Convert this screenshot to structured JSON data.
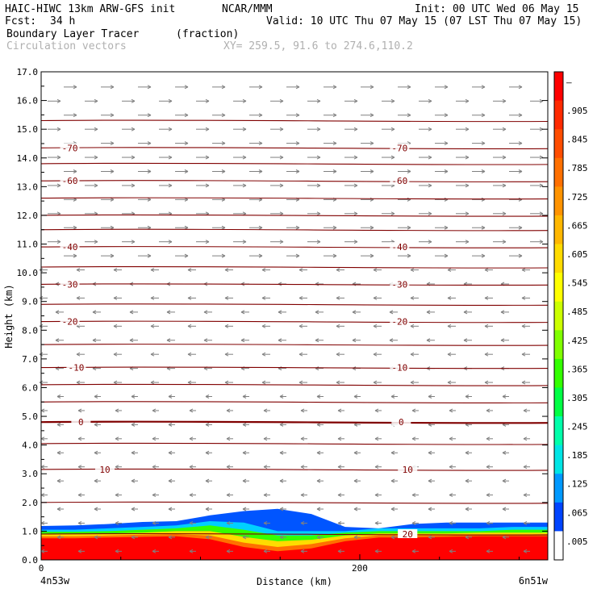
{
  "header": {
    "model": "HAIC-HIWC 13km ARW-GFS init",
    "org": "NCAR/MMM",
    "init": "Init: 00 UTC Wed 06 May 15",
    "fcst_label": "Fcst:",
    "fcst_value": "34 h",
    "valid": "Valid: 10 UTC Thu 07 May 15 (07 LST Thu 07 May 15)",
    "field": "Boundary Layer Tracer",
    "units": "(fraction)",
    "vectors": "Circulation vectors",
    "xy": "XY= 259.5, 91.6 to 274.6,110.2"
  },
  "chart_data": {
    "type": "heatmap",
    "ylabel": "Height (km)",
    "xlabel": "Distance (km)",
    "xlim": [
      0,
      318
    ],
    "ylim": [
      0,
      17
    ],
    "yticks": [
      "0.0",
      "1.0",
      "2.0",
      "3.0",
      "4.0",
      "5.0",
      "6.0",
      "7.0",
      "8.0",
      "9.0",
      "10.0",
      "11.0",
      "12.0",
      "13.0",
      "14.0",
      "15.0",
      "16.0",
      "17.0"
    ],
    "xticks": [
      {
        "v": 0,
        "label": "0"
      },
      {
        "v": 200,
        "label": "200"
      }
    ],
    "x_endpoints": [
      "4n53w",
      "6n51w"
    ],
    "colorbar": {
      "labels": [
        "–",
        ".905",
        ".845",
        ".785",
        ".725",
        ".665",
        ".605",
        ".545",
        ".485",
        ".425",
        ".365",
        ".305",
        ".245",
        ".185",
        ".125",
        ".065",
        ".005"
      ],
      "colors": [
        "#ff0000",
        "#ff2a00",
        "#ff4d00",
        "#ff7000",
        "#ff9300",
        "#ffb700",
        "#ffdb00",
        "#ffff00",
        "#ccff00",
        "#80ff00",
        "#33ff00",
        "#00ff44",
        "#00ffaa",
        "#00e5e5",
        "#0099ff",
        "#0044ff",
        "#ffffff"
      ]
    },
    "tracer_bands": [
      {
        "level": 1.0,
        "top": [
          1.18,
          1.2,
          1.25,
          1.32,
          1.35,
          1.55,
          1.7,
          1.78,
          1.6,
          1.15,
          1.1,
          1.25,
          1.3,
          1.3,
          1.3,
          1.3
        ],
        "color": "#0055ff"
      },
      {
        "level": 0.5,
        "top": [
          1.05,
          1.05,
          1.1,
          1.15,
          1.2,
          1.35,
          1.3,
          1.0,
          1.0,
          1.0,
          1.1,
          1.1,
          1.1,
          1.1,
          1.15,
          1.15
        ],
        "color": "#00d0ff"
      },
      {
        "level": 0.3,
        "top": [
          0.98,
          0.98,
          1.0,
          1.05,
          1.1,
          1.2,
          1.05,
          0.85,
          0.85,
          0.95,
          1.0,
          1.0,
          1.0,
          1.0,
          1.05,
          1.05
        ],
        "color": "#33ff00"
      },
      {
        "level": 0.15,
        "top": [
          0.9,
          0.9,
          0.92,
          0.95,
          1.0,
          1.0,
          0.8,
          0.65,
          0.7,
          0.85,
          0.92,
          0.92,
          0.92,
          0.95,
          0.95,
          0.95
        ],
        "color": "#ffdb00"
      },
      {
        "level": 0.05,
        "top": [
          0.82,
          0.82,
          0.85,
          0.88,
          0.9,
          0.85,
          0.6,
          0.45,
          0.55,
          0.75,
          0.85,
          0.85,
          0.85,
          0.88,
          0.88,
          0.88
        ],
        "color": "#ff7000"
      },
      {
        "level": 0.0,
        "top": [
          0.75,
          0.75,
          0.78,
          0.8,
          0.82,
          0.72,
          0.45,
          0.3,
          0.4,
          0.65,
          0.78,
          0.78,
          0.8,
          0.82,
          0.82,
          0.82
        ],
        "color": "#ff0000"
      }
    ],
    "temperature_contours": [
      {
        "label": "-70",
        "y": 14.35,
        "label_x": [
          18,
          225
        ]
      },
      {
        "label": "-60",
        "y": 13.2,
        "label_x": [
          18,
          225
        ]
      },
      {
        "label": "-40",
        "y": 10.9,
        "label_x": [
          18,
          225
        ]
      },
      {
        "label": "-30",
        "y": 9.6,
        "label_x": [
          18,
          225
        ]
      },
      {
        "label": "-20",
        "y": 8.3,
        "label_x": [
          18,
          225
        ]
      },
      {
        "label": "-10",
        "y": 6.7,
        "label_x": [
          22,
          225
        ]
      },
      {
        "label": "0",
        "y": 4.8,
        "label_x": [
          25,
          226
        ]
      },
      {
        "label": "10",
        "y": 3.15,
        "label_x": [
          40,
          230
        ]
      },
      {
        "label": "20",
        "y": 0.9,
        "label_x": [
          230,
          230
        ]
      }
    ],
    "unlabeled_contours": [
      15.3,
      13.8,
      12.6,
      12.0,
      11.5,
      10.2,
      8.9,
      7.5,
      6.1,
      5.5,
      4.05,
      2.0
    ]
  }
}
